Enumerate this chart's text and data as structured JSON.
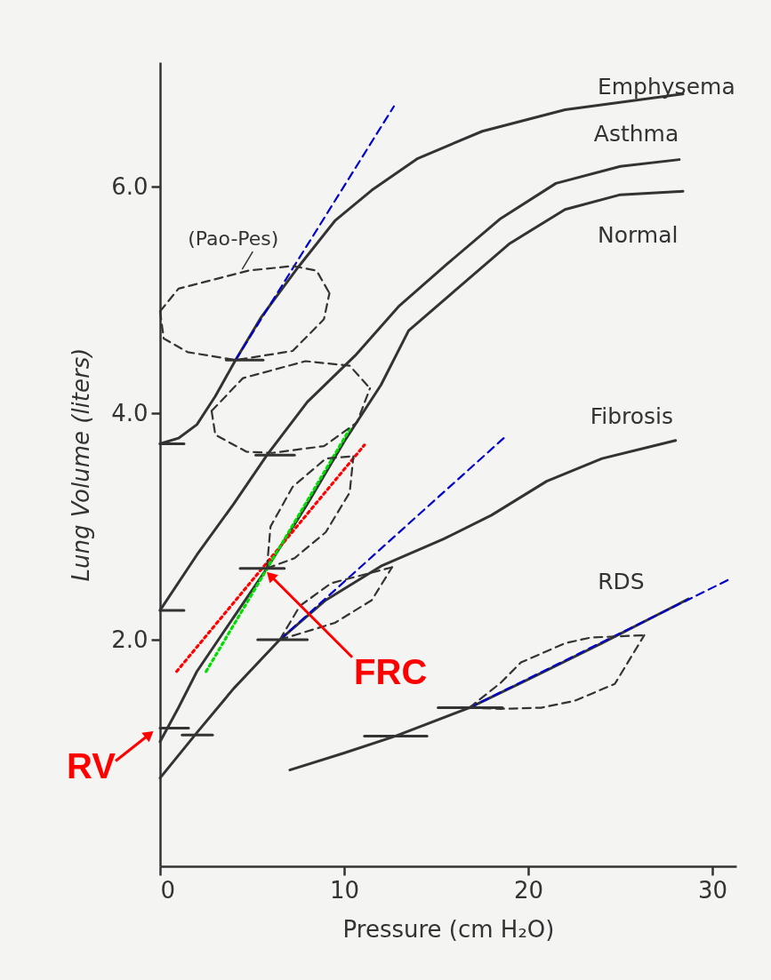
{
  "chart_data": {
    "type": "line",
    "xlabel": "Pressure (cm H₂O)",
    "ylabel": "Lung Volume (liters)",
    "xlim": [
      0,
      31.3
    ],
    "ylim": [
      0,
      7.1
    ],
    "xticks": [
      0,
      10,
      20,
      30
    ],
    "yticks": [
      {
        "value": 2,
        "label": "2.0"
      },
      {
        "value": 4,
        "label": "4.0"
      },
      {
        "value": 6,
        "label": "6.0"
      }
    ],
    "grid": false,
    "marker": "none",
    "series": [
      {
        "name": "Emphysema",
        "color": "#333333",
        "line_style": "solid",
        "x": [
          0,
          1,
          2,
          3,
          4.1,
          5.5,
          7.5,
          9.5,
          11.5,
          14,
          17.5,
          22,
          28.4
        ],
        "values": [
          3.73,
          3.78,
          3.9,
          4.15,
          4.47,
          4.85,
          5.29,
          5.7,
          5.97,
          6.25,
          6.49,
          6.68,
          6.82
        ]
      },
      {
        "name": "Asthma",
        "color": "#333333",
        "line_style": "solid",
        "x": [
          0,
          2,
          4,
          5.8,
          8,
          10.6,
          13,
          15.6,
          18.5,
          21.5,
          25,
          28.2
        ],
        "values": [
          2.26,
          2.75,
          3.2,
          3.63,
          4.1,
          4.51,
          4.95,
          5.32,
          5.72,
          6.03,
          6.18,
          6.24
        ]
      },
      {
        "name": "Normal",
        "color": "#333333",
        "line_style": "solid",
        "x": [
          0,
          1,
          2,
          4,
          5.8,
          8,
          10,
          12,
          13.5,
          16,
          19,
          22,
          25,
          28.4
        ],
        "values": [
          1.1,
          1.4,
          1.72,
          2.2,
          2.63,
          3.2,
          3.75,
          4.25,
          4.73,
          5.08,
          5.5,
          5.8,
          5.93,
          5.96
        ]
      },
      {
        "name": "Fibrosis",
        "color": "#333333",
        "line_style": "solid",
        "x": [
          0,
          2,
          4,
          6.5,
          9,
          12,
          15.4,
          18,
          21,
          24,
          28
        ],
        "values": [
          0.78,
          1.18,
          1.57,
          2.0,
          2.35,
          2.65,
          2.89,
          3.1,
          3.4,
          3.6,
          3.76
        ]
      },
      {
        "name": "RDS",
        "color": "#333333",
        "line_style": "solid",
        "x": [
          7.05,
          10,
          12.8,
          16.8,
          20,
          24,
          28.7
        ],
        "values": [
          0.85,
          1.0,
          1.15,
          1.4,
          1.65,
          1.97,
          2.36
        ]
      },
      {
        "color": "#0000cc",
        "line_style": "dashed",
        "x": [
          4.1,
          12.7
        ],
        "values": [
          4.47,
          6.71
        ]
      },
      {
        "color": "#0000cc",
        "line_style": "dashed",
        "x": [
          6.5,
          18.8
        ],
        "values": [
          2.0,
          3.8
        ]
      },
      {
        "color": "#0000cc",
        "line_style": "dashed",
        "x": [
          16.8,
          31.0
        ],
        "values": [
          1.4,
          2.54
        ]
      },
      {
        "color": "#ff0000",
        "line_style": "dotted",
        "x": [
          0.9,
          11.1
        ],
        "values": [
          1.72,
          3.72
        ]
      },
      {
        "color": "#00dd00",
        "line_style": "dotted",
        "x": [
          2.5,
          10.3
        ],
        "values": [
          1.72,
          3.86
        ]
      },
      {
        "color": "#333333",
        "line_style": "dashed",
        "x": [
          0,
          0.2,
          1.5,
          4.1,
          7.2,
          8.9,
          9.2
        ],
        "values": [
          4.9,
          4.66,
          4.54,
          4.47,
          4.55,
          4.83,
          5.06
        ]
      },
      {
        "color": "#333333",
        "line_style": "dashed",
        "x": [
          0,
          1,
          4.8,
          7.2,
          8.5,
          9.2
        ],
        "values": [
          4.9,
          5.1,
          5.26,
          5.3,
          5.26,
          5.06
        ]
      },
      {
        "color": "#333333",
        "line_style": "dashed",
        "x": [
          2.8,
          3.0,
          4.7,
          6.1,
          8.9,
          10.7,
          11.4
        ],
        "values": [
          4.02,
          3.81,
          3.66,
          3.65,
          3.71,
          3.92,
          4.22
        ]
      },
      {
        "color": "#333333",
        "line_style": "dashed",
        "x": [
          2.8,
          4.5,
          7.9,
          10.3,
          11.4
        ],
        "values": [
          4.02,
          4.31,
          4.46,
          4.42,
          4.22
        ]
      },
      {
        "color": "#333333",
        "line_style": "dashed",
        "x": [
          5.8,
          6.0,
          7.2,
          9.0,
          10.5
        ],
        "values": [
          2.63,
          3.0,
          3.35,
          3.6,
          3.62
        ]
      },
      {
        "color": "#333333",
        "line_style": "dashed",
        "x": [
          5.8,
          7.3,
          9.0,
          10.3,
          10.5
        ],
        "values": [
          2.63,
          2.72,
          2.95,
          3.3,
          3.62
        ]
      },
      {
        "color": "#333333",
        "line_style": "dashed",
        "x": [
          6.5,
          7.6,
          9.3,
          12.6
        ],
        "values": [
          2.0,
          2.3,
          2.5,
          2.64
        ]
      },
      {
        "color": "#333333",
        "line_style": "dashed",
        "x": [
          6.5,
          9.5,
          11.5,
          12.6
        ],
        "values": [
          2.0,
          2.15,
          2.35,
          2.64
        ]
      },
      {
        "color": "#333333",
        "line_style": "dashed",
        "x": [
          16.8,
          18.5,
          19.6,
          22,
          23.4,
          26.3
        ],
        "values": [
          1.4,
          1.62,
          1.8,
          1.97,
          2.02,
          2.04
        ]
      },
      {
        "color": "#333333",
        "line_style": "dashed",
        "x": [
          16.8,
          18.5,
          20.7,
          22.5,
          24.7,
          26.3
        ],
        "values": [
          1.4,
          1.39,
          1.4,
          1.46,
          1.61,
          2.04
        ]
      },
      {
        "color": "#333333",
        "line_style": "solid",
        "x": [
          0,
          1.3
        ],
        "values": [
          3.73,
          3.73
        ]
      },
      {
        "color": "#333333",
        "line_style": "solid",
        "x": [
          0,
          1.3
        ],
        "values": [
          2.26,
          2.26
        ]
      },
      {
        "color": "#333333",
        "line_style": "solid",
        "x": [
          3.6,
          5.6
        ],
        "values": [
          4.47,
          4.47
        ]
      },
      {
        "color": "#333333",
        "line_style": "solid",
        "x": [
          5.2,
          7.3
        ],
        "values": [
          3.63,
          3.63
        ]
      },
      {
        "color": "#333333",
        "line_style": "solid",
        "x": [
          4.35,
          6.75
        ],
        "values": [
          2.63,
          2.63
        ]
      },
      {
        "color": "#333333",
        "line_style": "solid",
        "x": [
          5.3,
          8.0
        ],
        "values": [
          2.0,
          2.0
        ]
      },
      {
        "color": "#333333",
        "line_style": "solid",
        "x": [
          0,
          1.55
        ],
        "values": [
          1.22,
          1.22
        ]
      },
      {
        "color": "#333333",
        "line_style": "solid",
        "x": [
          1.2,
          2.85
        ],
        "values": [
          1.16,
          1.16
        ]
      },
      {
        "color": "#333333",
        "line_style": "solid",
        "x": [
          11.1,
          14.5
        ],
        "values": [
          1.15,
          1.15
        ]
      },
      {
        "color": "#333333",
        "line_style": "solid",
        "x": [
          15.1,
          18.6
        ],
        "values": [
          1.4,
          1.4
        ]
      }
    ],
    "annotations": [
      {
        "text": "RV",
        "x": 0,
        "y": 1.22
      },
      {
        "text": "FRC",
        "x": 5.8,
        "y": 2.63
      },
      "(Pao-Pes)"
    ]
  }
}
